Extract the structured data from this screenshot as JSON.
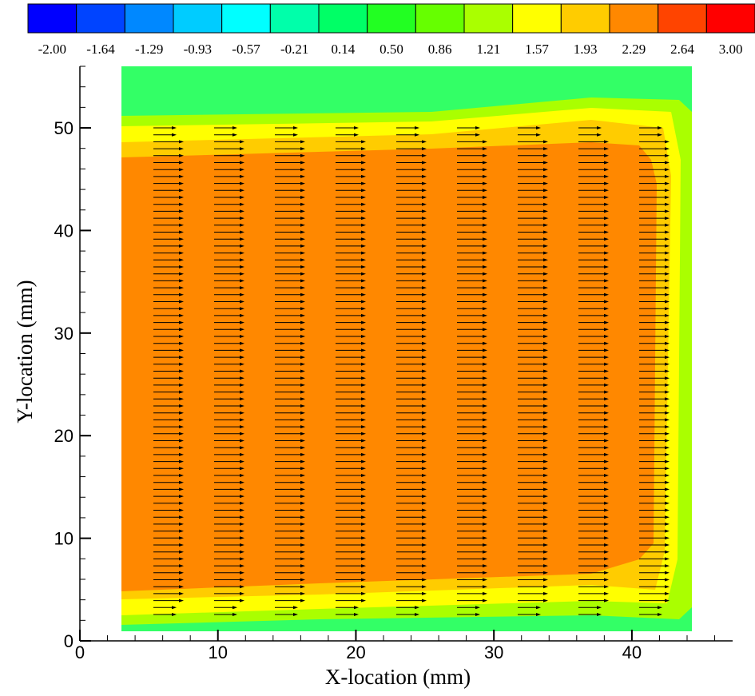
{
  "chart_data": {
    "type": "contour",
    "xlabel": "X-location (mm)",
    "ylabel": "Y-location (mm)",
    "xlim": [
      0,
      47.3
    ],
    "ylim": [
      0,
      56
    ],
    "xticks": [
      0,
      10,
      20,
      30,
      40
    ],
    "yticks": [
      0,
      10,
      20,
      30,
      40,
      50
    ],
    "colorbar": {
      "ticks": [
        {
          "value": -2,
          "label": "-2.00"
        },
        -1.64,
        -1.29,
        -0.93,
        -0.57,
        -0.21,
        0.14,
        {
          "value": 0.5,
          "label": "0.50"
        },
        0.86,
        1.21,
        1.57,
        1.93,
        2.29,
        2.64,
        {
          "value": 3,
          "label": "3.00"
        }
      ],
      "colors": [
        "#0000ff",
        "#0044ff",
        "#0088ff",
        "#00ccff",
        "#00ffff",
        "#00ffaa",
        "#00ff66",
        "#22ff22",
        "#66ff00",
        "#aaff00",
        "#ffff00",
        "#ffcc00",
        "#ff8800",
        "#ff4400",
        "#ff0000"
      ]
    }
  }
}
